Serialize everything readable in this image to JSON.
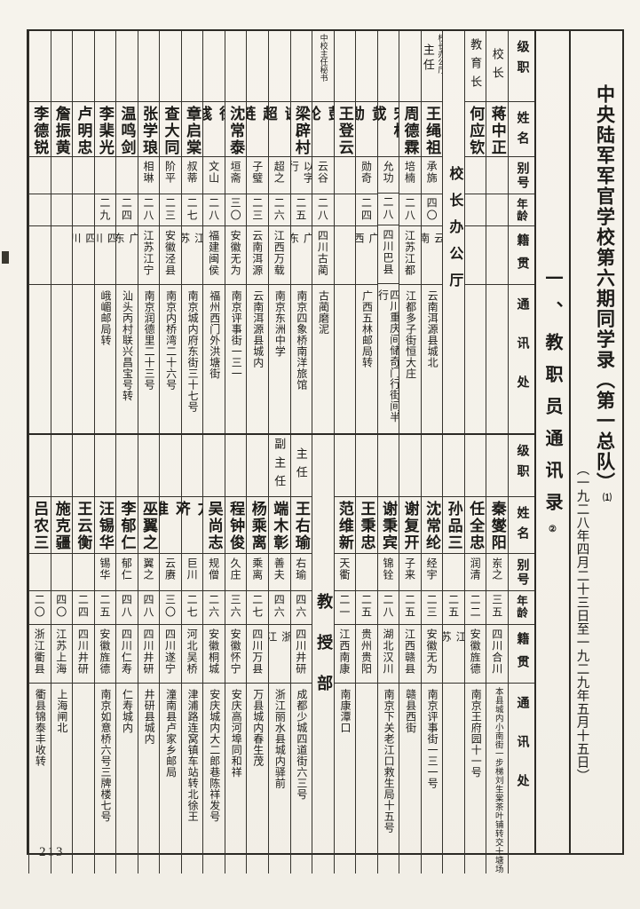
{
  "page_number": "213",
  "titles": {
    "main": "中央陆军军官学校第六期同学录（第一总队）",
    "main_note": "⑴",
    "date": "（一九二八年四月二十三日至一九二九年五月十五日）",
    "section": "一、教职员通讯录",
    "section_note": "②"
  },
  "headers": [
    "级职",
    "姓名",
    "别号",
    "年龄",
    "籍贯",
    "通讯处"
  ],
  "tables": [
    {
      "columns": [
        {
          "position": "校长",
          "name": "蒋中正"
        },
        {
          "position": "教育长",
          "name": "何应钦"
        },
        {
          "section": "校长办公厅"
        },
        {
          "position_small": "校长办公厅",
          "position": "主任",
          "name": "王绳祖",
          "alias": "承旆",
          "age": "四〇",
          "origin": "云南",
          "address": "云南洱源县城北"
        },
        {
          "name": "周德霖",
          "alias": "培楠",
          "age": "二八",
          "origin": "江苏江都",
          "address": "江都多子街恒大庄"
        },
        {
          "name": "宋相成",
          "alias": "允功",
          "age": "二八",
          "origin": "四川巴县",
          "address": "四川重庆间储奇门行街间半行"
        },
        {
          "name": "黄勋",
          "alias": "勋奇",
          "age": "二四",
          "origin": "广西",
          "address": "广西五林邮局转"
        },
        {
          "name": "王登云"
        },
        {
          "position_small": "中校主任秘书",
          "name": "彭纶",
          "alias": "云谷",
          "age": "二八",
          "origin": "四川古蔺",
          "address": "古蔺磨泥"
        },
        {
          "name": "梁辟村",
          "alias": "以字行",
          "age": "二五",
          "origin": "广东",
          "address": "南京四象桥南洋旅馆"
        },
        {
          "name": "谢超",
          "alias": "超之",
          "age": "二六",
          "origin": "江西万载",
          "address": "南京东洲中学"
        },
        {
          "name": "赵琏",
          "alias": "子璧",
          "age": "二三",
          "origin": "云南洱源",
          "address": "云南洱源县城内"
        },
        {
          "name": "沈常泰",
          "alias": "垣斋",
          "age": "三〇",
          "origin": "安徽无为",
          "address": "南京评事街一三一"
        },
        {
          "name": "徐彧",
          "alias": "文山",
          "age": "二八",
          "origin": "福建闽侯",
          "address": "福州西门外洪塘街"
        },
        {
          "name": "章启棠",
          "alias": "叔蒂",
          "age": "二七",
          "origin": "江苏",
          "address": "南京城内府东街三十七号"
        },
        {
          "name": "查大同",
          "alias": "阶平",
          "age": "二三",
          "origin": "安徽泾县",
          "address": "南京内桥湾二十六号"
        },
        {
          "name": "张学琅",
          "alias": "相琳",
          "age": "二八",
          "origin": "江苏江宁",
          "address": "南京润德里二十三号"
        },
        {
          "name": "温鸣剑",
          "age": "二四",
          "origin": "广东",
          "address": "汕头丙村联兴昌宝号转"
        },
        {
          "name": "李棐光",
          "age": "二九",
          "origin": "四川",
          "address": "峨嵋邮局转"
        },
        {
          "name": "卢明忠",
          "origin": "四川"
        },
        {
          "name": "詹振黄"
        },
        {
          "name": "李德锐"
        }
      ]
    },
    {
      "columns": [
        {
          "name": "秦燮阳",
          "alias": "岽之",
          "age": "三五",
          "origin": "四川合川",
          "address": "本县城内小南街一步梯刘生棠茶叶铺转交十塘场",
          "address_small": true
        },
        {
          "name": "任全忠",
          "alias": "润清",
          "age": "二二",
          "origin": "安徽旌德",
          "address": "南京王府园十一号"
        },
        {
          "name": "孙品三",
          "age": "二五",
          "origin": "江苏"
        },
        {
          "name": "沈常纶",
          "alias": "经宇",
          "age": "二三",
          "origin": "安徽无为",
          "address": "南京评事街一三一号"
        },
        {
          "name": "谢复开",
          "alias": "子来",
          "age": "二五",
          "origin": "江西赣县",
          "address": "赣县西街"
        },
        {
          "name": "谢秉宾",
          "alias": "锦铨",
          "age": "二八",
          "origin": "湖北汉川",
          "address": "南京下关老江口救生局十五号"
        },
        {
          "name": "王秉忠",
          "age": "二五",
          "origin": "贵州贵阳"
        },
        {
          "name": "范维新",
          "alias": "天衢",
          "age": "二一",
          "origin": "江西南康",
          "address": "南康潭口"
        },
        {
          "section": "教授部"
        },
        {
          "position": "主任",
          "name": "王右瑜",
          "alias": "右瑜",
          "age": "四六",
          "origin": "四川井研",
          "address": "成都少城四道街六三号"
        },
        {
          "position": "副主任",
          "name": "端木彰",
          "alias": "善夫",
          "age": "四六",
          "origin": "浙江",
          "address": "浙江丽水县城内驿前"
        },
        {
          "name": "杨乘离",
          "alias": "乘离",
          "age": "二七",
          "origin": "四川万县",
          "address": "万县城内春生茂"
        },
        {
          "name": "程钟俊",
          "alias": "久庄",
          "age": "三六",
          "origin": "安徽怀宁",
          "address": "安庆高河埠同和祥"
        },
        {
          "name": "吴尚志",
          "alias": "规僧",
          "age": "二六",
          "origin": "安徽桐城",
          "address": "安庆城内大二郎巷陈祥发号"
        },
        {
          "name": "方济",
          "alias": "巨川",
          "age": "二七",
          "origin": "河北吴桥",
          "address": "津浦路连窝镇车站转北徐王"
        },
        {
          "name": "邓淮",
          "alias": "云赓",
          "age": "三〇",
          "origin": "四川遂宁",
          "address": "潼南县卢家乡邮局"
        },
        {
          "name": "巫翼之",
          "alias": "翼之",
          "age": "四八",
          "origin": "四川井研",
          "address": "井研县城内"
        },
        {
          "name": "李郁仁",
          "alias": "郁仁",
          "age": "四八",
          "origin": "四川仁寿",
          "address": "仁寿城内"
        },
        {
          "name": "汪锡华",
          "alias": "锡华",
          "age": "二五",
          "origin": "安徽旌德",
          "address": "南京如意桥六号三牌楼七号"
        },
        {
          "name": "王云衡",
          "age": "二四",
          "origin": "四川井研"
        },
        {
          "name": "施克疆",
          "age": "四〇",
          "origin": "江苏上海",
          "address": "上海闸北"
        },
        {
          "name": "吕农三",
          "age": "二〇",
          "origin": "浙江衢县",
          "address": "衢县锦泰丰收转"
        }
      ]
    }
  ]
}
